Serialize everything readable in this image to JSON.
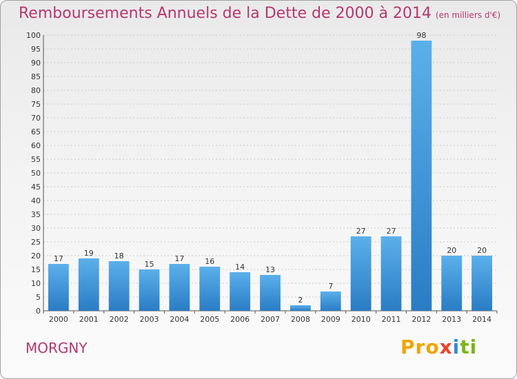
{
  "title": "Remboursements Annuels de la Dette de 2000 à 2014",
  "subtitle": "(en milliers d'€)",
  "commune": "MORGNY",
  "logo": {
    "text": "Proxiti",
    "parts": [
      "Pro",
      "x",
      "i",
      "ti"
    ]
  },
  "colors": {
    "title": "#b5376e",
    "bar_top": "#5bb0ea",
    "bar_bottom": "#2a7cc4",
    "grid": "#c8c8c8"
  },
  "chart_data": {
    "type": "bar",
    "title": "Remboursements Annuels de la Dette de 2000 à 2014",
    "xlabel": "",
    "ylabel": "",
    "categories": [
      "2000",
      "2001",
      "2002",
      "2003",
      "2004",
      "2005",
      "2006",
      "2007",
      "2008",
      "2009",
      "2010",
      "2011",
      "2012",
      "2013",
      "2014"
    ],
    "values": [
      17,
      19,
      18,
      15,
      17,
      16,
      14,
      13,
      2,
      7,
      27,
      27,
      98,
      20,
      20
    ],
    "ylim": [
      0,
      100
    ],
    "yticks": [
      0,
      5,
      10,
      15,
      20,
      25,
      30,
      35,
      40,
      45,
      50,
      55,
      60,
      65,
      70,
      75,
      80,
      85,
      90,
      95,
      100
    ],
    "grid": true,
    "data_labels": true,
    "legend": "none"
  }
}
